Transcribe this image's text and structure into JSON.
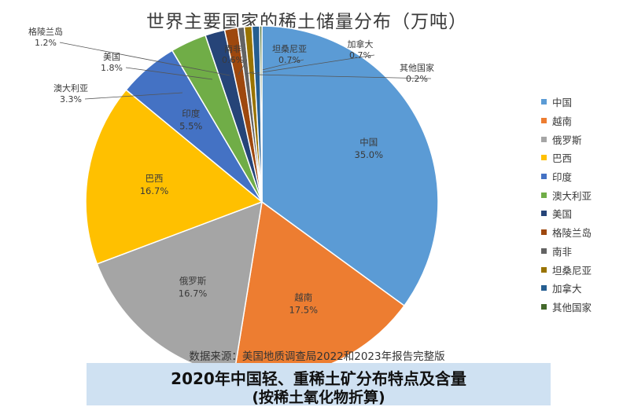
{
  "chart_data": {
    "type": "pie",
    "title": "世界主要国家的稀土储量分布（万吨）",
    "slices": [
      {
        "name": "中国",
        "value": 35.0,
        "label": "35.0%",
        "color": "#5b9bd5"
      },
      {
        "name": "越南",
        "value": 17.5,
        "label": "17.5%",
        "color": "#ed7d31"
      },
      {
        "name": "俄罗斯",
        "value": 16.7,
        "label": "16.7%",
        "color": "#a5a5a5"
      },
      {
        "name": "巴西",
        "value": 16.7,
        "label": "16.7%",
        "color": "#ffc000"
      },
      {
        "name": "印度",
        "value": 5.5,
        "label": "5.5%",
        "color": "#4472c4"
      },
      {
        "name": "澳大利亚",
        "value": 3.3,
        "label": "3.3%",
        "color": "#70ad47"
      },
      {
        "name": "美国",
        "value": 1.8,
        "label": "1.8%",
        "color": "#264478"
      },
      {
        "name": "格陵兰岛",
        "value": 1.2,
        "label": "1.2%",
        "color": "#9e480e"
      },
      {
        "name": "南非",
        "value": 0.6,
        "label": "0.6%",
        "color": "#636363"
      },
      {
        "name": "坦桑尼亚",
        "value": 0.7,
        "label": "0.7%",
        "color": "#997300"
      },
      {
        "name": "加拿大",
        "value": 0.7,
        "label": "0.7%",
        "color": "#255e91"
      },
      {
        "name": "其他国家",
        "value": 0.2,
        "label": "0.2%",
        "color": "#43682b"
      }
    ],
    "legend_position": "right"
  },
  "source_note": "数据来源：美国地质调查局2022和2023年报告完整版",
  "banner": {
    "line1": "2020年中国轻、重稀土矿分布特点及含量",
    "line2": "(按稀土氧化物折算)"
  }
}
